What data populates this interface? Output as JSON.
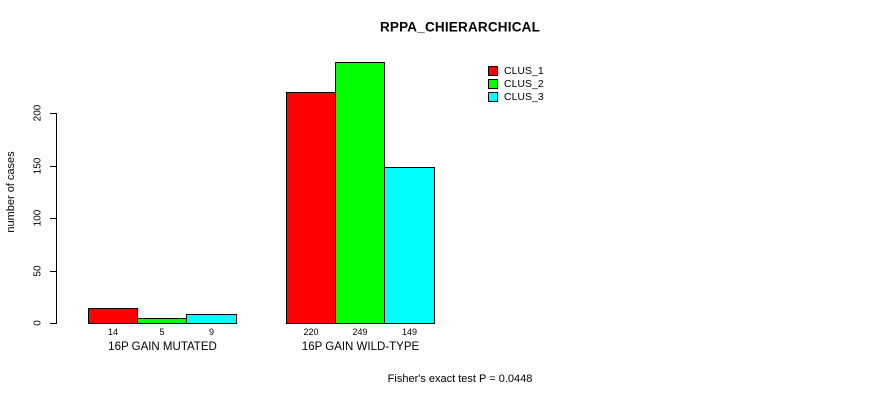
{
  "chart_data": {
    "type": "bar",
    "title": "RPPA_CHIERARCHICAL",
    "ylabel": "number of cases",
    "xlabel": "",
    "categories": [
      "16P GAIN MUTATED",
      "16P GAIN WILD-TYPE"
    ],
    "series": [
      {
        "name": "CLUS_1",
        "color": "#ff0000",
        "values": [
          14,
          220
        ]
      },
      {
        "name": "CLUS_2",
        "color": "#00ff00",
        "values": [
          5,
          249
        ]
      },
      {
        "name": "CLUS_3",
        "color": "#00ffff",
        "values": [
          9,
          149
        ]
      }
    ],
    "bar_value_labels": [
      [
        "14",
        "5",
        "9"
      ],
      [
        "220",
        "249",
        "149"
      ]
    ],
    "yticks": [
      0,
      50,
      100,
      150,
      200
    ],
    "ylim": [
      0,
      200
    ],
    "grid": false,
    "legend_position": "top-right",
    "footnote": "Fisher's exact test P = 0.0448",
    "background_color": "#ffffff",
    "bar_border_color": "#000000",
    "axis_color": "#000000"
  }
}
